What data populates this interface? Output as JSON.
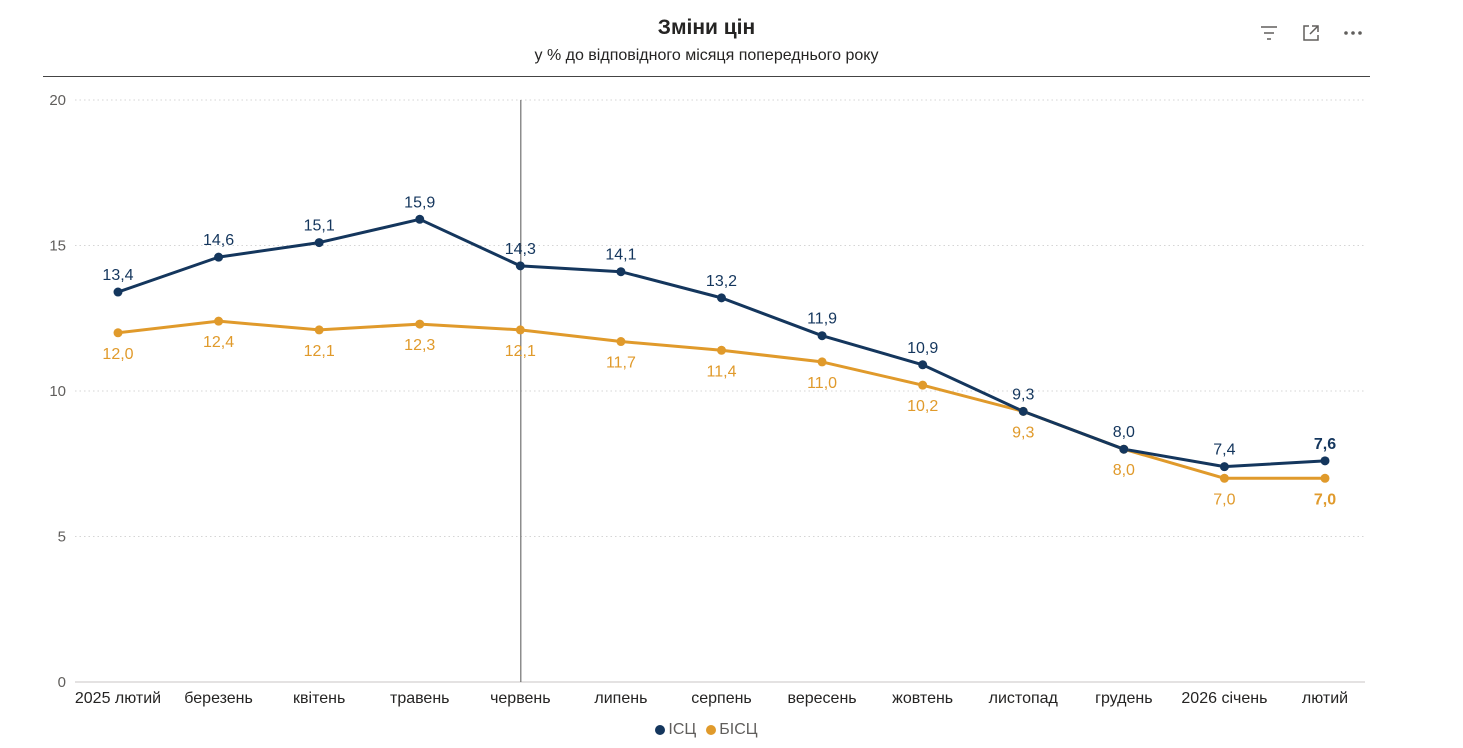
{
  "header": {
    "title": "Зміни цін",
    "subtitle": "у % до відповідного місяця попереднього року"
  },
  "toolbar": {
    "icons": [
      "filter-icon",
      "focus-mode-icon",
      "more-options-icon"
    ]
  },
  "colors": {
    "series_1": "#14365d",
    "series_2": "#e09a2b",
    "grid": "#d5d5d5",
    "axis": "#605e5c",
    "crosshair": "#555555"
  },
  "chart_data": {
    "type": "line",
    "categories": [
      "2025 лютий",
      "березень",
      "квітень",
      "травень",
      "червень",
      "липень",
      "серпень",
      "вересень",
      "жовтень",
      "листопад",
      "грудень",
      "2026 січень",
      "лютий"
    ],
    "series": [
      {
        "name": "ІСЦ",
        "values": [
          13.4,
          14.6,
          15.1,
          15.9,
          14.3,
          14.1,
          13.2,
          11.9,
          10.9,
          9.3,
          8.0,
          7.4,
          7.6
        ],
        "labels": [
          "13,4",
          "14,6",
          "15,1",
          "15,9",
          "14,3",
          "14,1",
          "13,2",
          "11,9",
          "10,9",
          "9,3",
          "8,0",
          "7,4",
          "7,6"
        ]
      },
      {
        "name": "БІСЦ",
        "values": [
          12.0,
          12.4,
          12.1,
          12.3,
          12.1,
          11.7,
          11.4,
          11.0,
          10.2,
          9.3,
          8.0,
          7.0,
          7.0
        ],
        "labels": [
          "12,0",
          "12,4",
          "12,1",
          "12,3",
          "12,1",
          "11,7",
          "11,4",
          "11,0",
          "10,2",
          "9,3",
          "8,0",
          "7,0",
          "7,0"
        ]
      }
    ],
    "ylim": [
      0,
      20
    ],
    "yticks": [
      "0",
      "5",
      "10",
      "15",
      "20"
    ],
    "grid": true,
    "legend": "bottom-center",
    "highlighted_category": "червень"
  }
}
